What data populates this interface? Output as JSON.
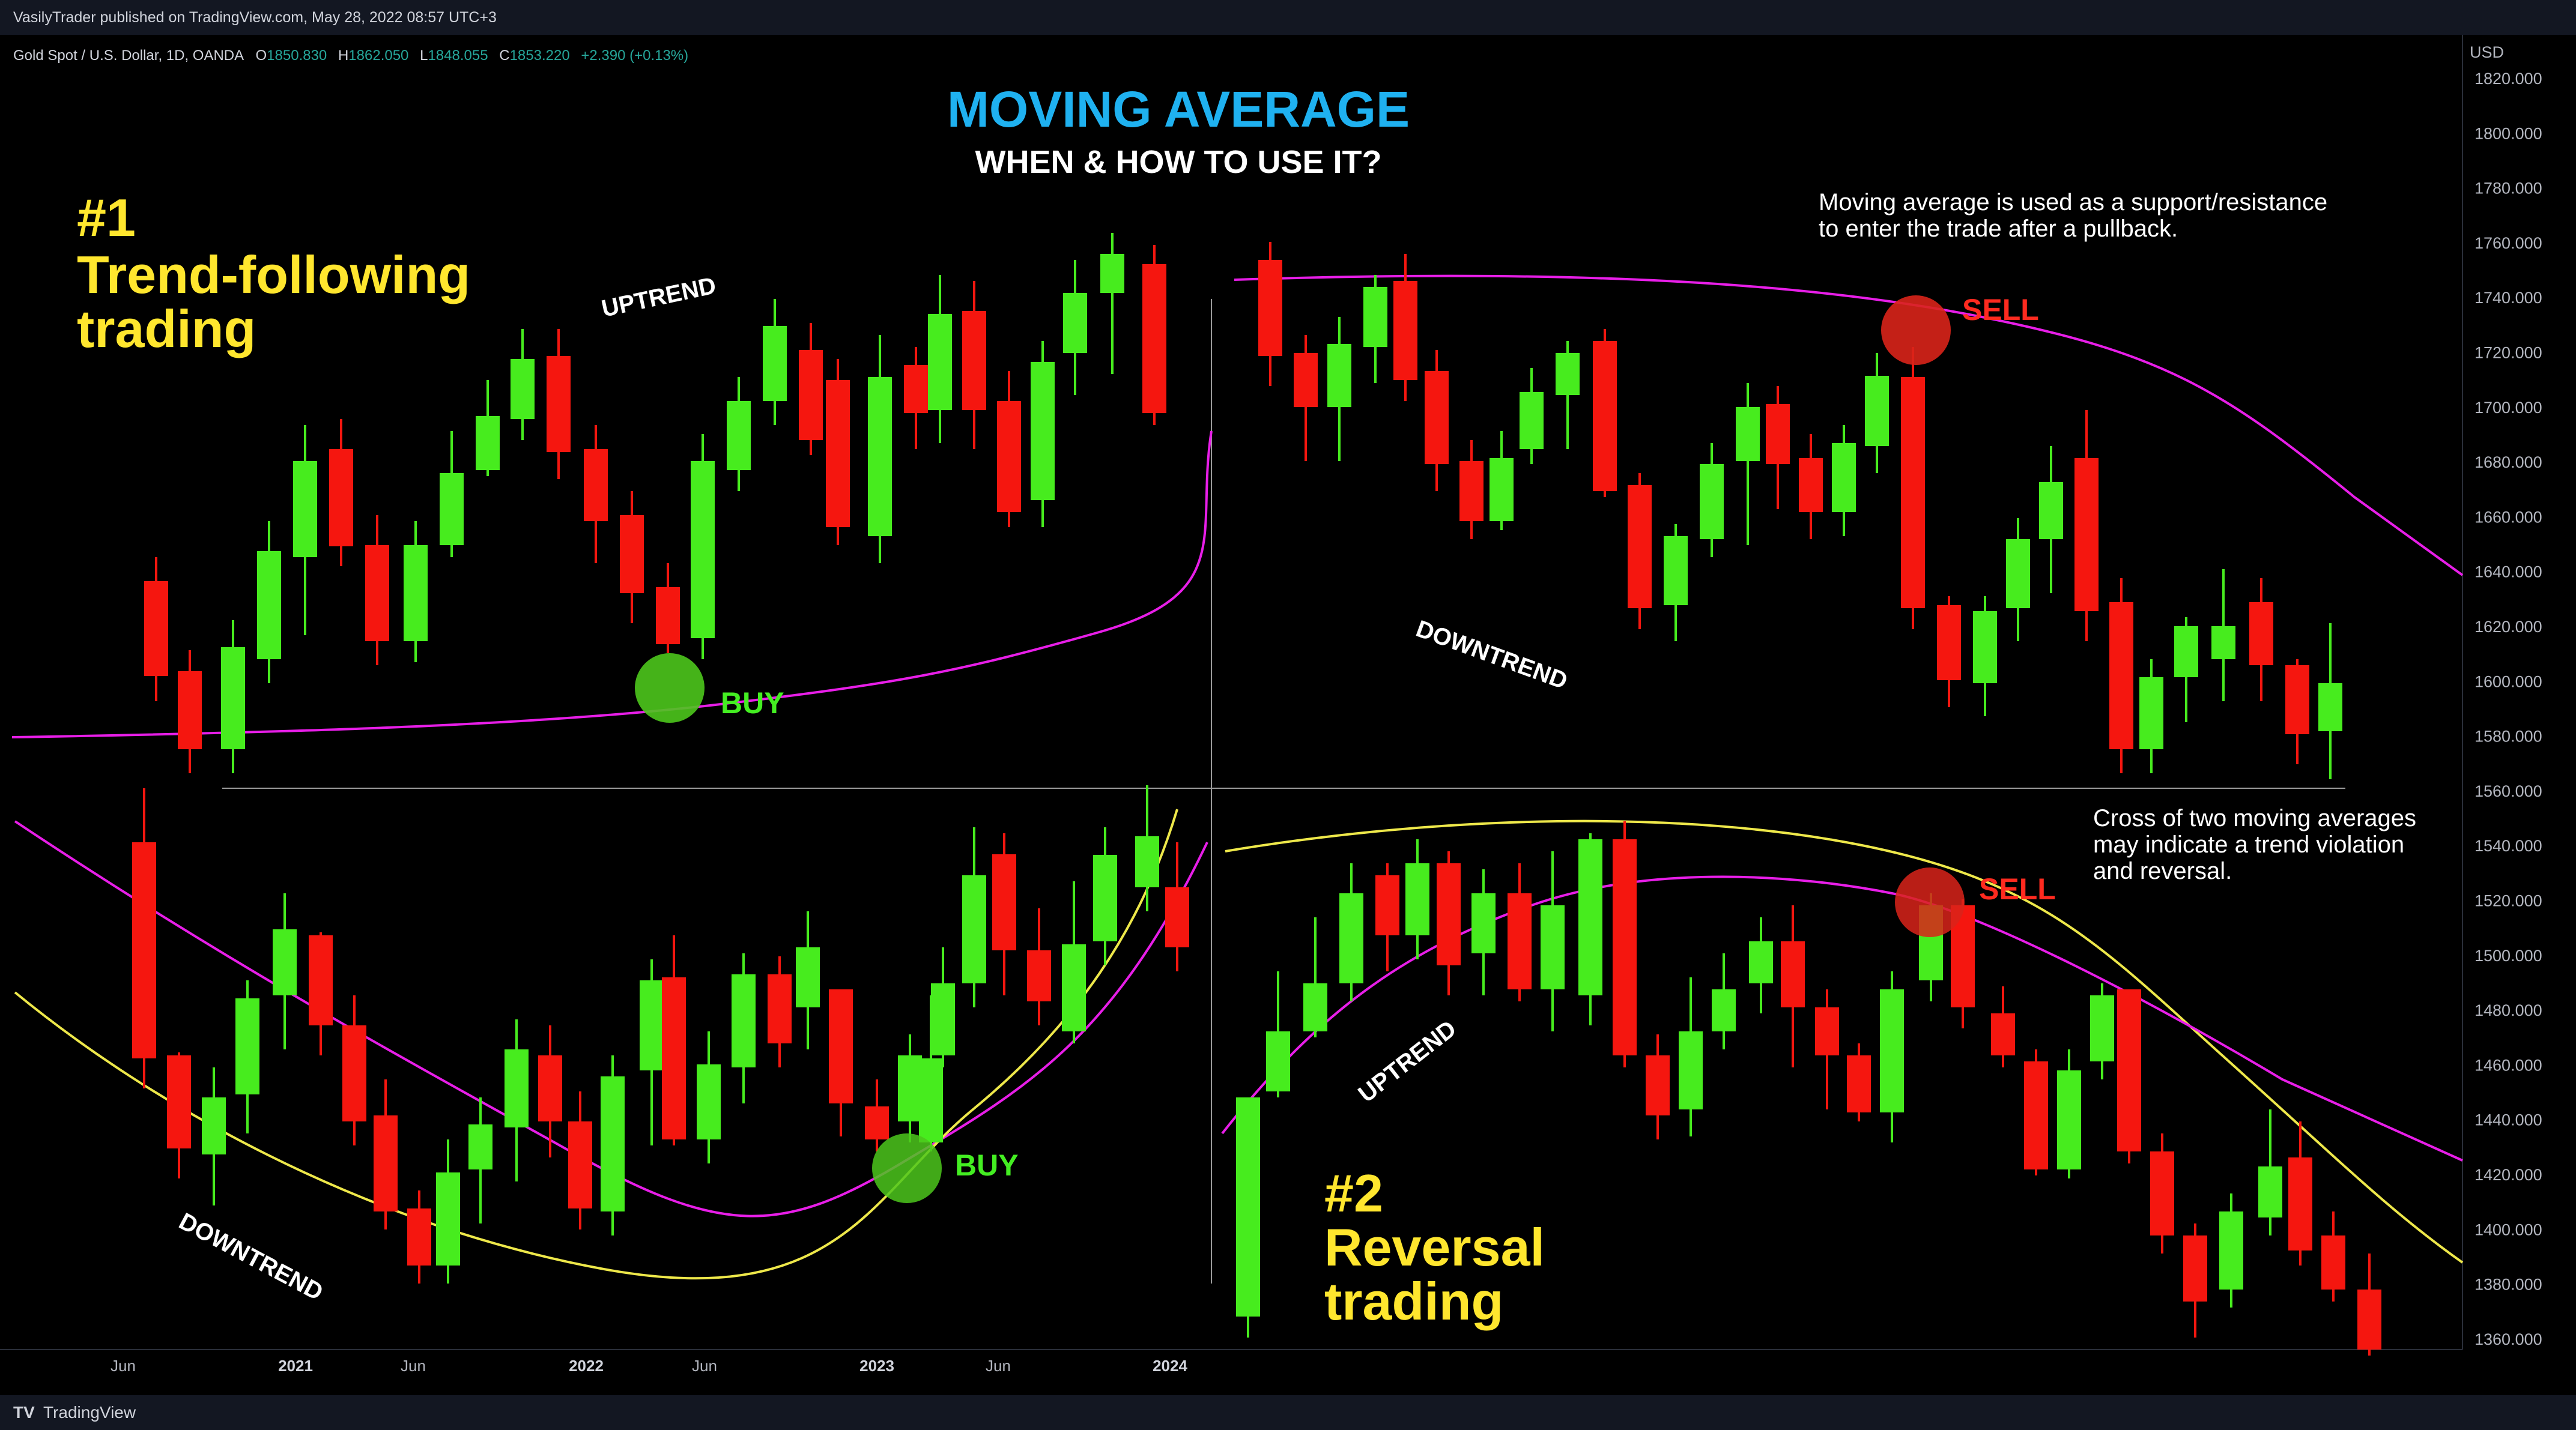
{
  "publisher_line": "VasilyTrader published on TradingView.com, May 28, 2022 08:57 UTC+3",
  "footer": {
    "logo": "TV",
    "brand": "TradingView"
  },
  "legend": {
    "symbol": "Gold Spot / U.S. Dollar, 1D, OANDA",
    "open_label": "O",
    "open": "1850.830",
    "high_label": "H",
    "high": "1862.050",
    "low_label": "L",
    "low": "1848.055",
    "close_label": "C",
    "close": "1853.220",
    "change": "+2.390 (+0.13%)"
  },
  "price_axis": {
    "currency": "USD",
    "labels": [
      "1820.000",
      "1800.000",
      "1780.000",
      "1760.000",
      "1740.000",
      "1720.000",
      "1700.000",
      "1680.000",
      "1660.000",
      "1640.000",
      "1620.000",
      "1600.000",
      "1580.000",
      "1560.000",
      "1540.000",
      "1520.000",
      "1500.000",
      "1480.000",
      "1460.000",
      "1440.000",
      "1420.000",
      "1400.000",
      "1380.000",
      "1360.000"
    ]
  },
  "time_axis": {
    "labels": [
      {
        "text": "Jun",
        "year": false
      },
      {
        "text": "2021",
        "year": true
      },
      {
        "text": "Jun",
        "year": false
      },
      {
        "text": "2022",
        "year": true
      },
      {
        "text": "Jun",
        "year": false
      },
      {
        "text": "2023",
        "year": true
      },
      {
        "text": "Jun",
        "year": false
      },
      {
        "text": "2024",
        "year": true
      }
    ]
  },
  "annotations": {
    "title": "MOVING AVERAGE",
    "subtitle": "WHEN & HOW TO USE IT?",
    "section1": [
      "#1",
      "Trend-following",
      "trading"
    ],
    "section2": [
      "#2",
      "Reversal",
      "trading"
    ],
    "uptrend_1": "UPTREND",
    "downtrend_1": "DOWNTREND",
    "downtrend_2": "DOWNTREND",
    "uptrend_2": "UPTREND",
    "buy_1": "BUY",
    "sell_1": "SELL",
    "buy_2": "BUY",
    "sell_2": "SELL",
    "note_1": [
      "Moving average is used as a support/resistance",
      "to enter the trade after a pullback."
    ],
    "note_2": [
      "Cross of two moving averages",
      "may indicate a trend violation",
      "and reversal."
    ]
  },
  "colors": {
    "bull": "#47ec1e",
    "bear": "#f5160f",
    "ma_fast": "#e81ee8",
    "ma_slow": "#eee84a",
    "buy_marker": "#4cc71c",
    "sell_marker": "#d9231a"
  },
  "chart_data": [
    {
      "type": "candlestick",
      "panel": "top-left",
      "bull_bear": [
        "bear",
        "bear",
        "bull",
        "bull",
        "bull",
        "bear",
        "bear",
        "bull",
        "bull",
        "bull",
        "bull",
        "bear",
        "bear",
        "bear",
        "bear",
        "bull",
        "bull",
        "bull",
        "bull",
        "bear",
        "bear",
        "bull",
        "bear",
        "bull",
        "bear",
        "bear",
        "bull",
        "bull",
        "bull",
        "bear"
      ]
    }
  ]
}
